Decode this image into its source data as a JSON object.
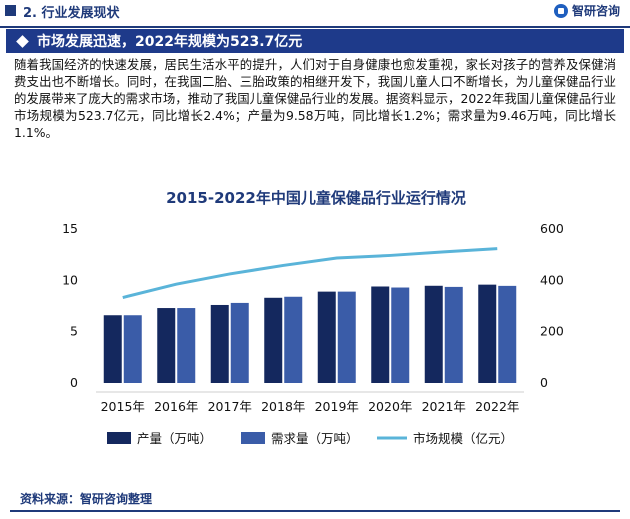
{
  "header": {
    "section_title": "2. 行业发展现状",
    "logo_text": "智研咨询"
  },
  "banner": {
    "text": "市场发展迅速，2022年规模为523.7亿元"
  },
  "body_text": "随着我国经济的快速发展，居民生活水平的提升，人们对于自身健康也愈发重视，家长对孩子的营养及保健消费支出也不断增长。同时，在我国二胎、三胎政策的相继开发下，我国儿童人口不断增长，为儿童保健品行业的发展带来了庞大的需求市场，推动了我国儿童保健品行业的发展。据资料显示，2022年我国儿童保健品行业市场规模为523.7亿元，同比增长2.4%；产量为9.58万吨，同比增长1.2%；需求量为9.46万吨，同比增长1.1%。",
  "chart_data": {
    "type": "bar",
    "title": "2015-2022年中国儿童保健品行业运行情况",
    "categories": [
      "2015年",
      "2016年",
      "2017年",
      "2018年",
      "2019年",
      "2020年",
      "2021年",
      "2022年"
    ],
    "series": [
      {
        "name": "产量（万吨）",
        "type": "bar",
        "axis": "left",
        "color": "#14285e",
        "values": [
          6.6,
          7.3,
          7.6,
          8.3,
          8.9,
          9.4,
          9.47,
          9.58
        ]
      },
      {
        "name": "需求量（万吨）",
        "type": "bar",
        "axis": "left",
        "color": "#3a5ca8",
        "values": [
          6.6,
          7.3,
          7.8,
          8.4,
          8.9,
          9.3,
          9.36,
          9.46
        ]
      },
      {
        "name": "市场规模（亿元）",
        "type": "line",
        "axis": "right",
        "color": "#5ab4d9",
        "values": [
          333,
          385,
          425,
          458,
          487,
          497,
          511,
          523.7
        ]
      }
    ],
    "y_left": {
      "ticks": [
        0,
        5,
        10,
        15
      ],
      "ylim": [
        0,
        15
      ]
    },
    "y_right": {
      "ticks": [
        0,
        200,
        400,
        600
      ],
      "ylim": [
        0,
        600
      ]
    },
    "legend_position": "bottom",
    "grid": false
  },
  "source": "资料来源：智研咨询整理"
}
